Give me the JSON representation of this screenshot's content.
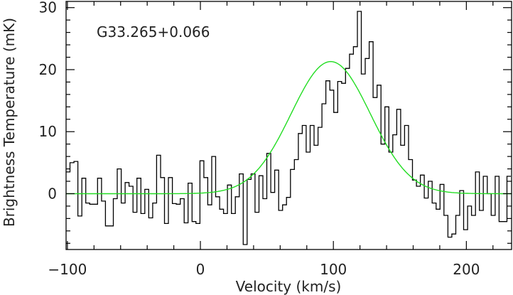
{
  "chart_data": {
    "type": "line",
    "xlabel": "Velocity (km/s)",
    "ylabel": "Brightness Temperature (mK)",
    "annotation": "G33.265+0.066",
    "xlim": [
      -101,
      234
    ],
    "ylim": [
      -9,
      31
    ],
    "x_ticks": [
      -100,
      0,
      100,
      200
    ],
    "x_tick_labels": [
      "−100",
      "0",
      "100",
      "200"
    ],
    "y_ticks": [
      0,
      10,
      20,
      30
    ],
    "y_tick_labels": [
      "0",
      "10",
      "20",
      "30"
    ],
    "grid": false,
    "colors": {
      "spectrum": "#000000",
      "fit": "#22dd22",
      "axes": "#000000"
    },
    "series": [
      {
        "style": "step",
        "bin_width_kms": 2.96,
        "x": [
          -101.0,
          -98.04,
          -95.08,
          -92.12,
          -89.16,
          -86.2,
          -83.24,
          -80.28,
          -77.32,
          -74.36,
          -71.4,
          -68.44,
          -65.48,
          -62.52,
          -59.56,
          -56.6,
          -53.64,
          -50.68,
          -47.72,
          -44.76,
          -41.8,
          -38.84,
          -35.88,
          -32.92,
          -29.96,
          -27.0,
          -24.04,
          -21.08,
          -18.12,
          -15.16,
          -12.2,
          -9.24,
          -6.28,
          -3.32,
          -0.36,
          2.6,
          5.56,
          8.52,
          11.48,
          14.44,
          17.4,
          20.36,
          23.32,
          26.28,
          29.24,
          32.2,
          35.16,
          38.12,
          41.08,
          44.04,
          47.0,
          49.96,
          52.92,
          55.88,
          58.84,
          61.8,
          64.76,
          67.72,
          70.68,
          73.64,
          76.6,
          79.56,
          82.52,
          85.48,
          88.44,
          91.4,
          94.36,
          97.32,
          100.28,
          103.24,
          106.2,
          109.16,
          112.12,
          115.08,
          118.04,
          121.0,
          123.96,
          126.92,
          129.88,
          132.84,
          135.8,
          138.76,
          141.72,
          144.68,
          147.64,
          150.6,
          153.56,
          156.52,
          159.48,
          162.44,
          165.4,
          168.36,
          171.32,
          174.28,
          177.24,
          180.2,
          183.16,
          186.12,
          189.08,
          192.04,
          195.0,
          197.96,
          200.92,
          203.88,
          206.84,
          209.8,
          212.76,
          215.72,
          218.68,
          221.64,
          224.6,
          227.56,
          230.52
        ],
        "y": [
          3.5,
          5.0,
          5.2,
          -3.6,
          2.5,
          -1.5,
          -1.7,
          -1.7,
          2.5,
          -1.2,
          -5.2,
          -5.2,
          -0.8,
          4.0,
          -1.5,
          1.8,
          1.2,
          -3.0,
          2.5,
          -3.2,
          0.7,
          -3.9,
          -1.5,
          6.2,
          2.6,
          -4.8,
          2.6,
          -1.6,
          -1.7,
          -0.8,
          -4.7,
          1.7,
          -4.5,
          -4.8,
          5.3,
          2.6,
          -1.8,
          6.0,
          -0.5,
          -2.5,
          -3.2,
          1.4,
          -3.2,
          -0.5,
          3.2,
          -8.2,
          2.3,
          3.2,
          -3.0,
          2.9,
          -0.8,
          6.5,
          0.2,
          3.8,
          -2.7,
          -1.8,
          -0.6,
          3.9,
          5.5,
          9.7,
          11.0,
          6.7,
          11.0,
          7.8,
          10.7,
          14.5,
          18.2,
          16.7,
          13.1,
          18.1,
          17.8,
          20.2,
          22.5,
          23.7,
          29.4,
          19.3,
          21.8,
          24.5,
          15.5,
          17.5,
          8.0,
          14.0,
          6.7,
          9.5,
          13.6,
          7.8,
          11.0,
          5.5,
          2.2,
          1.2,
          3.0,
          -0.7,
          2.0,
          -1.5,
          -2.5,
          1.5,
          -3.5,
          -7.0,
          -6.5,
          -3.5,
          0.5,
          -5.8,
          -2.0,
          -3.5,
          3.5,
          -2.7,
          2.8,
          0.0,
          -3.5,
          2.8,
          -4.5,
          -4.5,
          2.8
        ]
      },
      {
        "style": "gaussian_fit",
        "peak_mK": 21.3,
        "center_kms": 98.0,
        "fwhm_kms": 70.0
      }
    ]
  }
}
